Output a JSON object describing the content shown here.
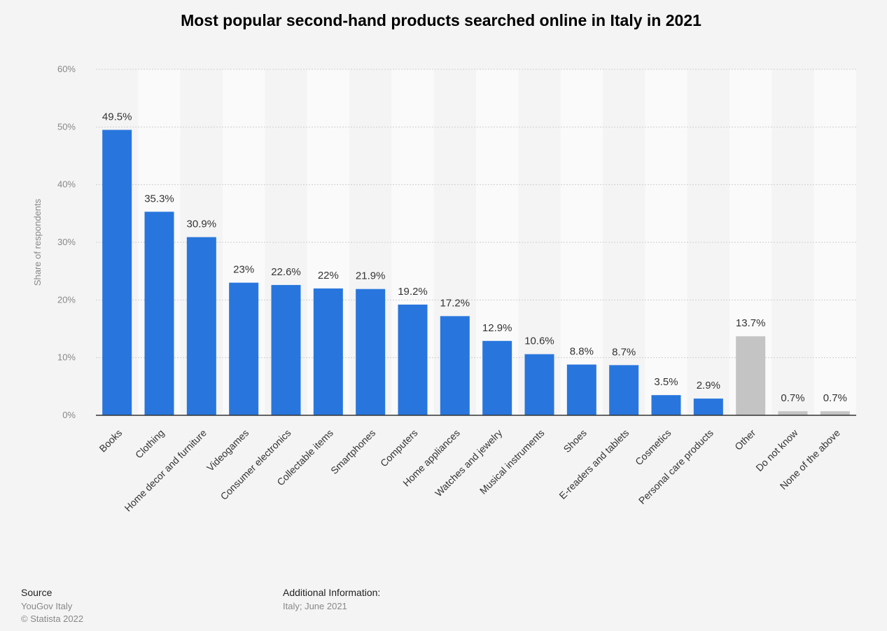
{
  "chart_data": {
    "type": "bar",
    "title": "Most popular second-hand products searched online in Italy in 2021",
    "ylabel": "Share of respondents",
    "xlabel": "",
    "ylim": [
      0,
      60
    ],
    "yticks": [
      "0%",
      "10%",
      "20%",
      "30%",
      "40%",
      "50%",
      "60%"
    ],
    "grid": true,
    "categories": [
      "Books",
      "Clothing",
      "Home decor and furniture",
      "Videogames",
      "Consumer electronics",
      "Collectable items",
      "Smartphones",
      "Computers",
      "Home appliances",
      "Watches and jewelry",
      "Musical instruments",
      "Shoes",
      "E-readers and tablets",
      "Cosmetics",
      "Personal care products",
      "Other",
      "Do not know",
      "None of the above"
    ],
    "values": [
      49.5,
      35.3,
      30.9,
      23,
      22.6,
      22,
      21.9,
      19.2,
      17.2,
      12.9,
      10.6,
      8.8,
      8.7,
      3.5,
      2.9,
      13.7,
      0.7,
      0.7
    ],
    "value_labels": [
      "49.5%",
      "35.3%",
      "30.9%",
      "23%",
      "22.6%",
      "22%",
      "21.9%",
      "19.2%",
      "17.2%",
      "12.9%",
      "10.6%",
      "8.8%",
      "8.7%",
      "3.5%",
      "2.9%",
      "13.7%",
      "0.7%",
      "0.7%"
    ],
    "bar_colors": [
      "#2876dd",
      "#2876dd",
      "#2876dd",
      "#2876dd",
      "#2876dd",
      "#2876dd",
      "#2876dd",
      "#2876dd",
      "#2876dd",
      "#2876dd",
      "#2876dd",
      "#2876dd",
      "#2876dd",
      "#2876dd",
      "#2876dd",
      "#c4c4c4",
      "#c4c4c4",
      "#c4c4c4"
    ]
  },
  "footer": {
    "source_heading": "Source",
    "source_lines": [
      "YouGov Italy",
      "© Statista 2022"
    ],
    "info_heading": "Additional Information:",
    "info_lines": [
      "Italy; June 2021"
    ]
  }
}
